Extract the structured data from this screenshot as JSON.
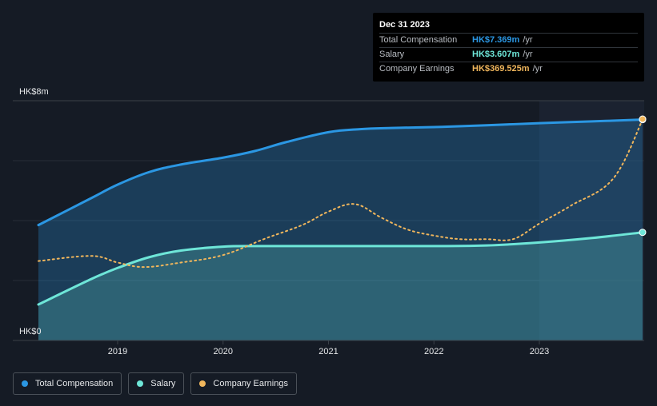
{
  "chart_data": {
    "type": "line",
    "y_top_label": "HK$8m",
    "y_bottom_label": "HK$0",
    "ylim": [
      0,
      8
    ],
    "x_ticks": [
      "2019",
      "2020",
      "2021",
      "2022",
      "2023"
    ],
    "x_tick_values": [
      2019,
      2020,
      2021,
      2022,
      2023
    ],
    "x_range": [
      2018.25,
      2024.0
    ],
    "forecast_start": 2023.0,
    "series": [
      {
        "name": "Total Compensation",
        "color": "#2b97e3",
        "style": "solid",
        "area": true,
        "x": [
          2018.25,
          2018.75,
          2019.0,
          2019.3,
          2019.6,
          2020.0,
          2020.3,
          2020.6,
          2021.0,
          2021.3,
          2021.6,
          2022.0,
          2022.5,
          2023.0,
          2023.5,
          2024.0
        ],
        "values": [
          3.85,
          4.75,
          5.2,
          5.62,
          5.87,
          6.1,
          6.32,
          6.62,
          6.95,
          7.05,
          7.09,
          7.12,
          7.18,
          7.25,
          7.31,
          7.369
        ]
      },
      {
        "name": "Salary",
        "color": "#6ee6d8",
        "style": "solid",
        "area": true,
        "x": [
          2018.25,
          2018.75,
          2019.0,
          2019.3,
          2019.6,
          2020.0,
          2020.3,
          2020.6,
          2021.0,
          2021.5,
          2022.0,
          2022.5,
          2023.0,
          2023.5,
          2024.0
        ],
        "values": [
          1.2,
          2.05,
          2.42,
          2.78,
          3.0,
          3.13,
          3.15,
          3.15,
          3.15,
          3.15,
          3.15,
          3.17,
          3.27,
          3.42,
          3.607
        ]
      },
      {
        "name": "Company Earnings",
        "color": "#f0b65c",
        "style": "dotted",
        "area": false,
        "x": [
          2018.25,
          2018.75,
          2019.0,
          2019.25,
          2019.6,
          2020.0,
          2020.4,
          2020.75,
          2021.0,
          2021.25,
          2021.5,
          2021.75,
          2022.0,
          2022.25,
          2022.5,
          2022.75,
          2023.0,
          2023.3,
          2023.7,
          2024.0
        ],
        "values": [
          2.65,
          2.82,
          2.6,
          2.45,
          2.6,
          2.85,
          3.4,
          3.85,
          4.3,
          4.55,
          4.1,
          3.7,
          3.5,
          3.38,
          3.38,
          3.38,
          3.9,
          4.5,
          5.4,
          7.369
        ]
      }
    ]
  },
  "tooltip": {
    "title": "Dec 31 2023",
    "rows": [
      {
        "label": "Total Compensation",
        "value": "HK$7.369m",
        "unit": "/yr",
        "color": "#2b97e3"
      },
      {
        "label": "Salary",
        "value": "HK$3.607m",
        "unit": "/yr",
        "color": "#6ee6d8"
      },
      {
        "label": "Company Earnings",
        "value": "HK$369.525m",
        "unit": "/yr",
        "color": "#f0b65c"
      }
    ]
  },
  "legend": [
    {
      "label": "Total Compensation",
      "color": "#2b97e3"
    },
    {
      "label": "Salary",
      "color": "#6ee6d8"
    },
    {
      "label": "Company Earnings",
      "color": "#f0b65c"
    }
  ]
}
